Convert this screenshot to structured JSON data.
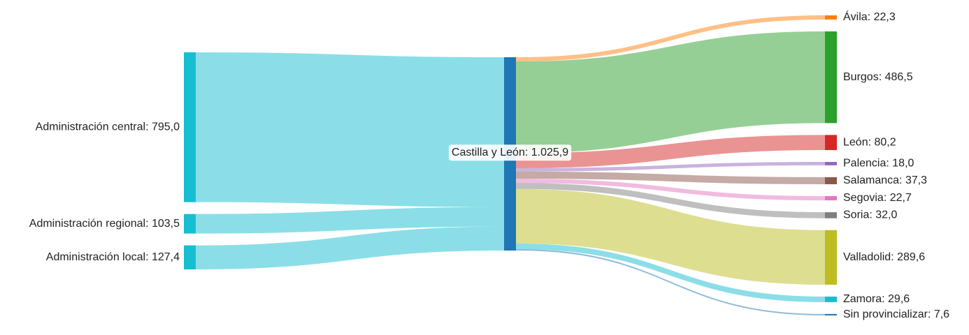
{
  "chart_data": {
    "type": "sankey",
    "nodes": [
      {
        "label": "Administración central: 795,0",
        "value": 795.0,
        "color": "#17becf"
      },
      {
        "label": "Administración regional: 103,5",
        "value": 103.5,
        "color": "#17becf"
      },
      {
        "label": "Administración local: 127,4",
        "value": 127.4,
        "color": "#17becf"
      },
      {
        "label": "Castilla y León: 1.025,9",
        "value": 1025.9,
        "color": "#1f77b4"
      },
      {
        "label": "Ávila: 22,3",
        "value": 22.3,
        "color": "#ff7f0e"
      },
      {
        "label": "Burgos: 486,5",
        "value": 486.5,
        "color": "#2ca02c"
      },
      {
        "label": "León: 80,2",
        "value": 80.2,
        "color": "#d62728"
      },
      {
        "label": "Palencia: 18,0",
        "value": 18.0,
        "color": "#9467bd"
      },
      {
        "label": "Salamanca: 37,3",
        "value": 37.3,
        "color": "#8c564b"
      },
      {
        "label": "Segovia: 22,7",
        "value": 22.7,
        "color": "#e377c2"
      },
      {
        "label": "Soria: 32,0",
        "value": 32.0,
        "color": "#7f7f7f"
      },
      {
        "label": "Valladolid: 289,6",
        "value": 289.6,
        "color": "#bcbd22"
      },
      {
        "label": "Zamora: 29,6",
        "value": 29.6,
        "color": "#17becf"
      },
      {
        "label": "Sin provincializar: 7,6",
        "value": 7.6,
        "color": "#1f77b4"
      }
    ],
    "links": [
      {
        "source": 0,
        "target": 3,
        "value": 795.0
      },
      {
        "source": 1,
        "target": 3,
        "value": 103.5
      },
      {
        "source": 2,
        "target": 3,
        "value": 127.4
      },
      {
        "source": 3,
        "target": 4,
        "value": 22.3
      },
      {
        "source": 3,
        "target": 5,
        "value": 486.5
      },
      {
        "source": 3,
        "target": 6,
        "value": 80.2
      },
      {
        "source": 3,
        "target": 7,
        "value": 18.0
      },
      {
        "source": 3,
        "target": 8,
        "value": 37.3
      },
      {
        "source": 3,
        "target": 9,
        "value": 22.7
      },
      {
        "source": 3,
        "target": 10,
        "value": 32.0
      },
      {
        "source": 3,
        "target": 11,
        "value": 289.6
      },
      {
        "source": 3,
        "target": 12,
        "value": 29.6
      },
      {
        "source": 3,
        "target": 13,
        "value": 7.6
      }
    ]
  }
}
